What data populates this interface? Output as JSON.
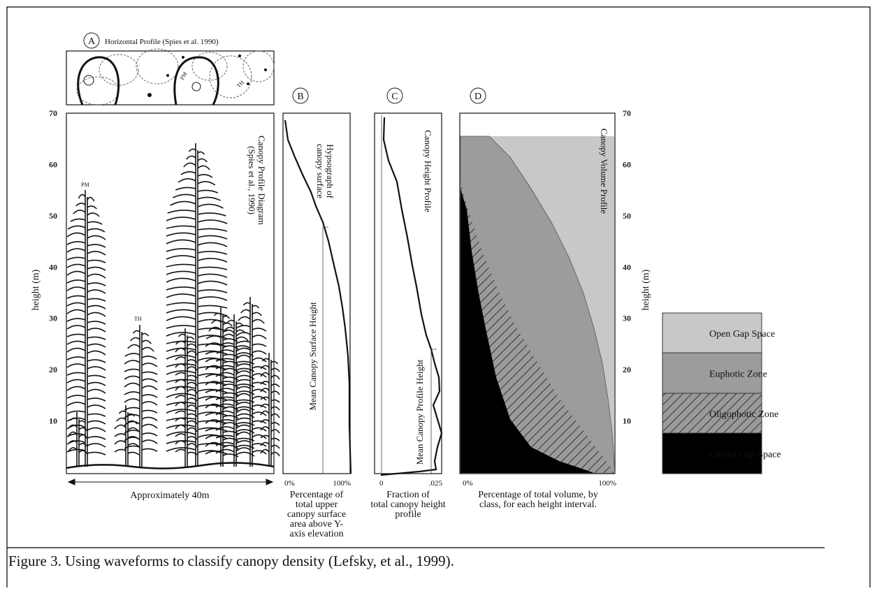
{
  "panel_a": {
    "letter": "A",
    "horizontal_profile_title": "Horizontal Profile (Spies et al. 1990)",
    "diagram_label": [
      "Canopy Profile Diagram",
      "(Spies et al., 1990)"
    ],
    "tree_labels": [
      "PM",
      "TH"
    ],
    "profile_labels": [
      "PM",
      "TH"
    ],
    "x_label": "Approximately 40m",
    "y_label": "height (m)",
    "yticks": [
      70,
      60,
      50,
      40,
      30,
      20,
      10
    ]
  },
  "panel_b": {
    "letter": "B",
    "curve_label": [
      "Hypsograph of",
      "canopy surface"
    ],
    "mean_label": "Mean Canopy Surface Height",
    "x_ticks": [
      "0%",
      "100%"
    ],
    "x_label": [
      "Percentage of",
      "total upper",
      "canopy  surface",
      "area above Y-",
      "axis elevation"
    ]
  },
  "panel_c": {
    "letter": "C",
    "curve_label": "Canopy Height Profile",
    "mean_label": "Mean Canopy Profile Height",
    "x_ticks": [
      "0",
      ".025"
    ],
    "x_label": [
      "Fraction of",
      "total canopy height",
      "profile"
    ]
  },
  "panel_d": {
    "letter": "D",
    "curve_label": "Canopy Volume Profile",
    "x_ticks": [
      "0%",
      "100%"
    ],
    "x_label": [
      "Percentage of total volume, by",
      "class, for each height interval."
    ],
    "y_label": "height (m)",
    "yticks": [
      70,
      60,
      50,
      40,
      30,
      20,
      10
    ]
  },
  "legend": [
    "Open Gap Space",
    "Euphotic Zone",
    "Oligophotic Zone",
    "Closed Gap Space"
  ],
  "caption": "Figure 3. Using waveforms to classify canopy density (Lefsky, et al., 1999)."
}
